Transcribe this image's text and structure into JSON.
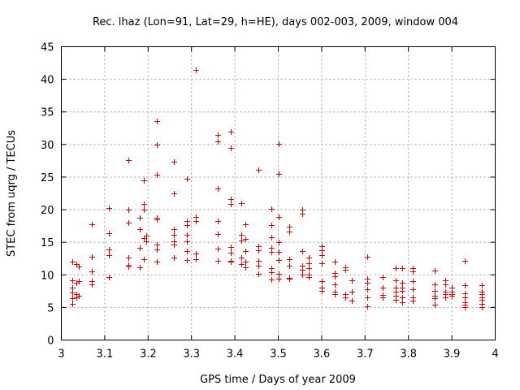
{
  "chart_data": {
    "type": "scatter",
    "title": "Rec. lhaz (Lon=91, Lat=29, h=HE), days 002-003, 2009, window 004",
    "xlabel": "GPS time / Days of year 2009",
    "ylabel": "STEC from uqrg / TECUs",
    "xlim": [
      3,
      4
    ],
    "ylim": [
      0,
      45
    ],
    "xticks": [
      "3",
      "3.1",
      "3.2",
      "3.3",
      "3.4",
      "3.5",
      "3.6",
      "3.7",
      "3.8",
      "3.9",
      "4"
    ],
    "yticks": [
      "0",
      "5",
      "10",
      "15",
      "20",
      "25",
      "30",
      "35",
      "40",
      "45"
    ],
    "grid": true,
    "marker": "+",
    "color": "#d00000",
    "points": [
      [
        3.025,
        12.0
      ],
      [
        3.025,
        9.2
      ],
      [
        3.025,
        8.1
      ],
      [
        3.025,
        7.3
      ],
      [
        3.025,
        6.4
      ],
      [
        3.025,
        5.6
      ],
      [
        3.035,
        11.6
      ],
      [
        3.035,
        8.8
      ],
      [
        3.035,
        7.0
      ],
      [
        3.035,
        6.6
      ],
      [
        3.04,
        11.3
      ],
      [
        3.04,
        9.0
      ],
      [
        3.04,
        6.8
      ],
      [
        3.07,
        17.8
      ],
      [
        3.07,
        12.8
      ],
      [
        3.07,
        10.5
      ],
      [
        3.07,
        9.0
      ],
      [
        3.07,
        8.6
      ],
      [
        3.11,
        20.3
      ],
      [
        3.11,
        16.4
      ],
      [
        3.11,
        13.9
      ],
      [
        3.11,
        13.0
      ],
      [
        3.11,
        9.6
      ],
      [
        3.155,
        27.6
      ],
      [
        3.155,
        20.0
      ],
      [
        3.155,
        18.0
      ],
      [
        3.155,
        12.6
      ],
      [
        3.155,
        11.5
      ],
      [
        3.155,
        11.3
      ],
      [
        3.18,
        18.8
      ],
      [
        3.18,
        17.0
      ],
      [
        3.18,
        14.1
      ],
      [
        3.18,
        11.2
      ],
      [
        3.19,
        24.5
      ],
      [
        3.19,
        20.9
      ],
      [
        3.19,
        20.0
      ],
      [
        3.19,
        15.6
      ],
      [
        3.19,
        12.4
      ],
      [
        3.195,
        16.0
      ],
      [
        3.195,
        15.2
      ],
      [
        3.22,
        33.6
      ],
      [
        3.22,
        30.0
      ],
      [
        3.22,
        25.4
      ],
      [
        3.22,
        18.7
      ],
      [
        3.22,
        18.5
      ],
      [
        3.22,
        14.7
      ],
      [
        3.22,
        13.9
      ],
      [
        3.22,
        12.0
      ],
      [
        3.26,
        27.4
      ],
      [
        3.26,
        22.5
      ],
      [
        3.26,
        17.0
      ],
      [
        3.26,
        16.2
      ],
      [
        3.26,
        15.2
      ],
      [
        3.26,
        14.6
      ],
      [
        3.26,
        12.6
      ],
      [
        3.29,
        24.8
      ],
      [
        3.29,
        18.3
      ],
      [
        3.29,
        17.6
      ],
      [
        3.29,
        16.2
      ],
      [
        3.29,
        15.2
      ],
      [
        3.29,
        13.7
      ],
      [
        3.29,
        12.3
      ],
      [
        3.31,
        41.5
      ],
      [
        3.31,
        18.9
      ],
      [
        3.31,
        18.3
      ],
      [
        3.31,
        13.3
      ],
      [
        3.31,
        12.4
      ],
      [
        3.36,
        31.5
      ],
      [
        3.36,
        30.5
      ],
      [
        3.36,
        23.2
      ],
      [
        3.36,
        18.2
      ],
      [
        3.36,
        16.3
      ],
      [
        3.36,
        14.0
      ],
      [
        3.36,
        12.2
      ],
      [
        3.39,
        32.0
      ],
      [
        3.39,
        29.5
      ],
      [
        3.39,
        21.6
      ],
      [
        3.39,
        20.9
      ],
      [
        3.39,
        14.3
      ],
      [
        3.39,
        13.4
      ],
      [
        3.39,
        12.2
      ],
      [
        3.39,
        12.0
      ],
      [
        3.415,
        21.0
      ],
      [
        3.415,
        16.2
      ],
      [
        3.415,
        15.3
      ],
      [
        3.415,
        12.6
      ],
      [
        3.415,
        11.6
      ],
      [
        3.425,
        17.8
      ],
      [
        3.425,
        15.5
      ],
      [
        3.425,
        13.6
      ],
      [
        3.425,
        12.0
      ],
      [
        3.425,
        11.2
      ],
      [
        3.455,
        26.1
      ],
      [
        3.455,
        14.4
      ],
      [
        3.455,
        13.8
      ],
      [
        3.455,
        12.2
      ],
      [
        3.455,
        11.4
      ],
      [
        3.455,
        10.2
      ],
      [
        3.485,
        20.1
      ],
      [
        3.485,
        17.6
      ],
      [
        3.485,
        15.8
      ],
      [
        3.485,
        14.2
      ],
      [
        3.485,
        13.5
      ],
      [
        3.485,
        11.0
      ],
      [
        3.485,
        10.4
      ],
      [
        3.485,
        9.3
      ],
      [
        3.5,
        30.1
      ],
      [
        3.5,
        25.5
      ],
      [
        3.5,
        18.9
      ],
      [
        3.5,
        15.0
      ],
      [
        3.5,
        13.5
      ],
      [
        3.5,
        12.3
      ],
      [
        3.5,
        10.2
      ],
      [
        3.5,
        9.4
      ],
      [
        3.525,
        17.4
      ],
      [
        3.525,
        16.7
      ],
      [
        3.525,
        12.4
      ],
      [
        3.525,
        11.4
      ],
      [
        3.525,
        9.5
      ],
      [
        3.525,
        9.4
      ],
      [
        3.555,
        20.0
      ],
      [
        3.555,
        19.4
      ],
      [
        3.555,
        13.7
      ],
      [
        3.555,
        11.4
      ],
      [
        3.555,
        10.8
      ],
      [
        3.555,
        10.0
      ],
      [
        3.57,
        12.6
      ],
      [
        3.57,
        11.8
      ],
      [
        3.57,
        11.0
      ],
      [
        3.57,
        10.0
      ],
      [
        3.57,
        9.7
      ],
      [
        3.6,
        14.4
      ],
      [
        3.6,
        13.8
      ],
      [
        3.6,
        13.0
      ],
      [
        3.6,
        11.8
      ],
      [
        3.6,
        9.0
      ],
      [
        3.6,
        8.0
      ],
      [
        3.6,
        7.5
      ],
      [
        3.63,
        12.0
      ],
      [
        3.63,
        10.3
      ],
      [
        3.63,
        9.8
      ],
      [
        3.63,
        8.6
      ],
      [
        3.63,
        7.4
      ],
      [
        3.63,
        7.0
      ],
      [
        3.655,
        11.2
      ],
      [
        3.655,
        10.8
      ],
      [
        3.655,
        7.0
      ],
      [
        3.655,
        6.6
      ],
      [
        3.67,
        9.1
      ],
      [
        3.67,
        7.4
      ],
      [
        3.67,
        6.0
      ],
      [
        3.705,
        12.8
      ],
      [
        3.705,
        9.4
      ],
      [
        3.705,
        8.8
      ],
      [
        3.705,
        7.8
      ],
      [
        3.705,
        6.6
      ],
      [
        3.705,
        5.2
      ],
      [
        3.74,
        9.6
      ],
      [
        3.74,
        8.1
      ],
      [
        3.74,
        6.9
      ],
      [
        3.74,
        6.6
      ],
      [
        3.77,
        11.0
      ],
      [
        3.77,
        9.2
      ],
      [
        3.77,
        8.0
      ],
      [
        3.77,
        7.4
      ],
      [
        3.77,
        6.8
      ],
      [
        3.77,
        6.2
      ],
      [
        3.785,
        11.0
      ],
      [
        3.785,
        8.8
      ],
      [
        3.785,
        8.0
      ],
      [
        3.785,
        7.6
      ],
      [
        3.785,
        6.6
      ],
      [
        3.785,
        5.8
      ],
      [
        3.81,
        11.0
      ],
      [
        3.81,
        10.5
      ],
      [
        3.81,
        9.0
      ],
      [
        3.81,
        7.8
      ],
      [
        3.81,
        6.6
      ],
      [
        3.81,
        6.0
      ],
      [
        3.86,
        10.6
      ],
      [
        3.86,
        8.6
      ],
      [
        3.86,
        7.6
      ],
      [
        3.86,
        6.8
      ],
      [
        3.86,
        6.4
      ],
      [
        3.86,
        5.4
      ],
      [
        3.885,
        9.2
      ],
      [
        3.885,
        8.6
      ],
      [
        3.885,
        7.4
      ],
      [
        3.885,
        7.0
      ],
      [
        3.885,
        6.6
      ],
      [
        3.9,
        8.0
      ],
      [
        3.9,
        7.4
      ],
      [
        3.9,
        7.0
      ],
      [
        3.9,
        6.8
      ],
      [
        3.93,
        12.1
      ],
      [
        3.93,
        8.4
      ],
      [
        3.93,
        7.2
      ],
      [
        3.93,
        6.6
      ],
      [
        3.93,
        5.8
      ],
      [
        3.93,
        5.4
      ],
      [
        3.93,
        5.0
      ],
      [
        3.97,
        8.4
      ],
      [
        3.97,
        7.4
      ],
      [
        3.97,
        7.0
      ],
      [
        3.97,
        6.6
      ],
      [
        3.97,
        6.2
      ],
      [
        3.97,
        5.6
      ],
      [
        3.97,
        5.0
      ]
    ]
  }
}
